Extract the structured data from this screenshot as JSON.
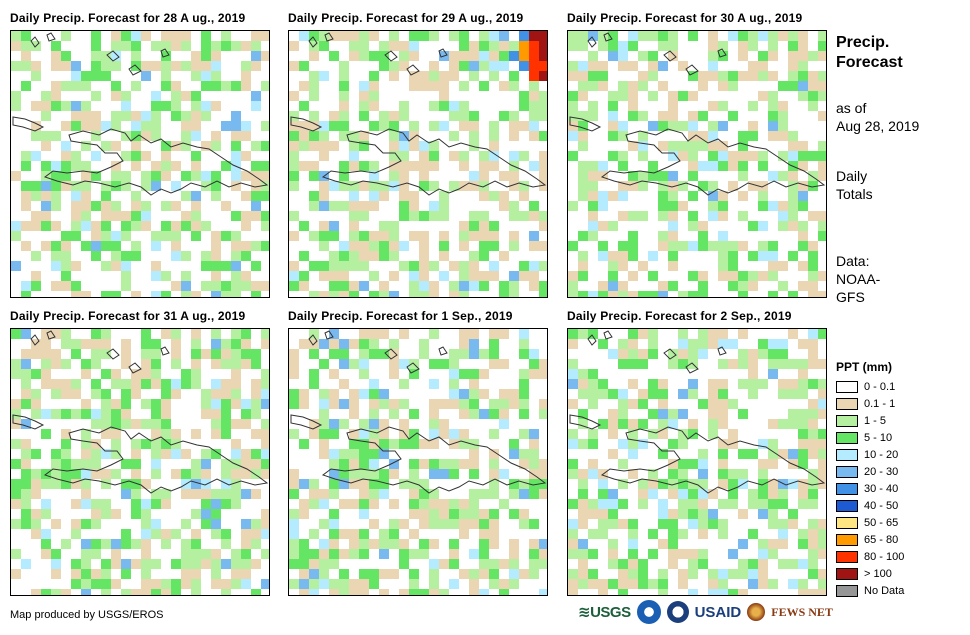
{
  "panels": [
    {
      "title": "Daily  Precip.  Forecast  for  28 A ug.,  2019",
      "pattern": "p28"
    },
    {
      "title": "Daily  Precip.  Forecast  for  29 A ug.,  2019",
      "pattern": "p29"
    },
    {
      "title": "Daily  Precip.  Forecast  for  30 A ug.,  2019",
      "pattern": "p30"
    },
    {
      "title": "Daily  Precip.  Forecast  for  31 A ug.,  2019",
      "pattern": "p31"
    },
    {
      "title": "Daily  Precip.  Forecast  for  1  Sep.,  2019",
      "pattern": "p1"
    },
    {
      "title": "Daily  Precip.  Forecast  for  2  Sep.,  2019",
      "pattern": "p2"
    }
  ],
  "sidebar": {
    "title_line1": "Precip.",
    "title_line2": "Forecast",
    "asof_line1": "as of",
    "asof_line2": "Aug 28, 2019",
    "daily_line1": "Daily",
    "daily_line2": "Totals",
    "data_line1": "Data:",
    "data_line2": "NOAA-",
    "data_line3": "GFS"
  },
  "legend": {
    "title": "PPT (mm)",
    "items": [
      {
        "label": "0 - 0.1",
        "color": "#ffffff"
      },
      {
        "label": "0.1 - 1",
        "color": "#ebd6b4"
      },
      {
        "label": "1 - 5",
        "color": "#b4f0a0"
      },
      {
        "label": "5 - 10",
        "color": "#64e664"
      },
      {
        "label": "10 - 20",
        "color": "#b4ebff"
      },
      {
        "label": "20 - 30",
        "color": "#78b9f0"
      },
      {
        "label": "30 - 40",
        "color": "#4191e6"
      },
      {
        "label": "40 - 50",
        "color": "#1e5ad2"
      },
      {
        "label": "50 - 65",
        "color": "#ffe682"
      },
      {
        "label": "65 - 80",
        "color": "#ff9b00"
      },
      {
        "label": "80 - 100",
        "color": "#ff3200"
      },
      {
        "label": "> 100",
        "color": "#a01414"
      },
      {
        "label": "No Data",
        "color": "#969696"
      }
    ]
  },
  "footer": {
    "credit": "Map produced by USGS/EROS",
    "logo_usgs": "≋USGS",
    "logo_usaid": "USAID",
    "logo_fews": "FEWS NET"
  }
}
